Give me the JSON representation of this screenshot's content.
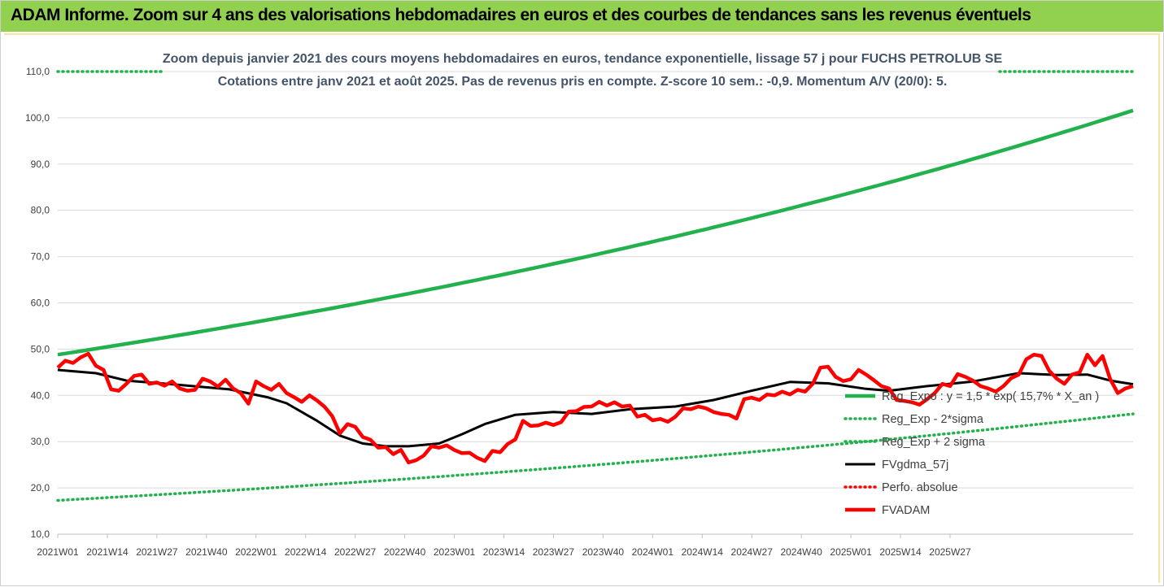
{
  "header": {
    "title": "ADAM Informe. Zoom sur 4 ans des valorisations hebdomadaires en euros et des courbes de tendances sans les revenus éventuels"
  },
  "chart_data": {
    "type": "line",
    "title": "Zoom depuis janvier 2021 des cours moyens hebdomadaires en euros, tendance exponentielle, lissage 57 j pour FUCHS PETROLUB SE",
    "subtitle": "Cotations entre janv 2021 et août 2025. Pas de revenus pris en compte. Z-score 10 sem.: -0,9. Momentum A/V (20/0): 5.",
    "ylim": [
      10,
      110
    ],
    "y_ticks": [
      "10,0",
      "20,0",
      "30,0",
      "40,0",
      "50,0",
      "60,0",
      "70,0",
      "80,0",
      "90,0",
      "100,0",
      "110,0"
    ],
    "x_ticks": [
      "2021W01",
      "2021W14",
      "2021W27",
      "2021W40",
      "2022W01",
      "2022W14",
      "2022W27",
      "2022W40",
      "2023W01",
      "2023W14",
      "2023W27",
      "2023W40",
      "2024W01",
      "2024W14",
      "2024W27",
      "2024W40",
      "2025W01",
      "2025W14",
      "2025W27"
    ],
    "grid": "horizontal",
    "legend_position": "bottom-right",
    "series": [
      {
        "name": "Reg_Expo : y = 1,5 * exp( 15,7% *  X_an )",
        "color": "#22b14c",
        "style": "solid",
        "start": 48.8,
        "end": 101.6
      },
      {
        "name": "Reg_Exp - 2*sigma",
        "color": "#22b14c",
        "style": "dotted",
        "start": 17.3,
        "end": 36.0
      },
      {
        "name": "Reg_Exp + 2 sigma",
        "color": "#22b14c",
        "style": "dotted",
        "start": 110,
        "end": 110
      },
      {
        "name": "FVgdma_57j",
        "color": "#000000",
        "style": "solid",
        "values": [
          [
            0,
            45.5
          ],
          [
            10,
            44.8
          ],
          [
            18,
            43.2
          ],
          [
            30,
            42.4
          ],
          [
            45,
            41.3
          ],
          [
            55,
            39.6
          ],
          [
            60,
            38.3
          ],
          [
            68,
            34.5
          ],
          [
            74,
            31.3
          ],
          [
            80,
            29.6
          ],
          [
            86,
            29.0
          ],
          [
            92,
            29.0
          ],
          [
            100,
            29.6
          ],
          [
            106,
            31.6
          ],
          [
            112,
            33.8
          ],
          [
            120,
            35.8
          ],
          [
            130,
            36.4
          ],
          [
            140,
            36.0
          ],
          [
            150,
            37.0
          ],
          [
            162,
            37.6
          ],
          [
            172,
            39.0
          ],
          [
            182,
            41.0
          ],
          [
            192,
            42.9
          ],
          [
            202,
            42.6
          ],
          [
            212,
            41.4
          ],
          [
            218,
            41.0
          ],
          [
            228,
            42.0
          ],
          [
            240,
            43.0
          ],
          [
            252,
            44.8
          ],
          [
            262,
            44.4
          ],
          [
            270,
            44.5
          ],
          [
            276,
            43.2
          ],
          [
            282,
            42.4
          ]
        ]
      },
      {
        "name": "Perfo. absolue",
        "color": "#ff0000",
        "style": "dotted",
        "values": []
      },
      {
        "name": "FVADAM",
        "color": "#ff0000",
        "style": "solid",
        "values": [
          [
            0,
            46.0
          ],
          [
            2,
            47.5
          ],
          [
            4,
            47.0
          ],
          [
            6,
            48.2
          ],
          [
            8,
            49.0
          ],
          [
            10,
            46.4
          ],
          [
            12,
            45.5
          ],
          [
            14,
            41.3
          ],
          [
            16,
            41.0
          ],
          [
            18,
            42.5
          ],
          [
            20,
            44.2
          ],
          [
            22,
            44.5
          ],
          [
            24,
            42.5
          ],
          [
            26,
            42.8
          ],
          [
            28,
            42.1
          ],
          [
            30,
            43.0
          ],
          [
            32,
            41.5
          ],
          [
            34,
            41.0
          ],
          [
            36,
            41.2
          ],
          [
            38,
            43.6
          ],
          [
            40,
            43.0
          ],
          [
            42,
            41.9
          ],
          [
            44,
            43.4
          ],
          [
            46,
            41.5
          ],
          [
            48,
            40.5
          ],
          [
            50,
            38.2
          ],
          [
            52,
            43.0
          ],
          [
            54,
            42.0
          ],
          [
            56,
            41.2
          ],
          [
            58,
            42.5
          ],
          [
            60,
            40.5
          ],
          [
            62,
            39.6
          ],
          [
            64,
            38.6
          ],
          [
            66,
            40.0
          ],
          [
            68,
            38.9
          ],
          [
            70,
            37.5
          ],
          [
            72,
            35.5
          ],
          [
            74,
            31.8
          ],
          [
            76,
            33.8
          ],
          [
            78,
            33.2
          ],
          [
            80,
            31.0
          ],
          [
            82,
            30.4
          ],
          [
            84,
            28.7
          ],
          [
            86,
            28.8
          ],
          [
            88,
            27.3
          ],
          [
            90,
            28.2
          ],
          [
            92,
            25.5
          ],
          [
            94,
            26.0
          ],
          [
            96,
            27.0
          ],
          [
            98,
            29.0
          ],
          [
            100,
            28.7
          ],
          [
            102,
            29.2
          ],
          [
            104,
            28.2
          ],
          [
            106,
            27.5
          ],
          [
            108,
            27.6
          ],
          [
            110,
            26.5
          ],
          [
            112,
            25.8
          ],
          [
            114,
            28.0
          ],
          [
            116,
            27.7
          ],
          [
            118,
            29.5
          ],
          [
            120,
            30.5
          ],
          [
            122,
            34.5
          ],
          [
            124,
            33.4
          ],
          [
            126,
            33.5
          ],
          [
            128,
            34.1
          ],
          [
            130,
            33.6
          ],
          [
            132,
            34.2
          ],
          [
            134,
            36.5
          ],
          [
            136,
            36.6
          ],
          [
            138,
            37.5
          ],
          [
            140,
            37.6
          ],
          [
            142,
            38.6
          ],
          [
            144,
            37.8
          ],
          [
            146,
            38.5
          ],
          [
            148,
            37.6
          ],
          [
            150,
            37.8
          ],
          [
            152,
            35.4
          ],
          [
            154,
            35.8
          ],
          [
            156,
            34.6
          ],
          [
            158,
            34.9
          ],
          [
            160,
            34.3
          ],
          [
            162,
            35.4
          ],
          [
            164,
            37.2
          ],
          [
            166,
            37.0
          ],
          [
            168,
            37.6
          ],
          [
            170,
            37.2
          ],
          [
            172,
            36.4
          ],
          [
            174,
            36.0
          ],
          [
            176,
            35.8
          ],
          [
            178,
            35.0
          ],
          [
            180,
            39.2
          ],
          [
            182,
            39.5
          ],
          [
            184,
            39.0
          ],
          [
            186,
            40.2
          ],
          [
            188,
            40.0
          ],
          [
            190,
            40.8
          ],
          [
            192,
            40.2
          ],
          [
            194,
            41.2
          ],
          [
            196,
            40.8
          ],
          [
            198,
            42.5
          ],
          [
            200,
            46.0
          ],
          [
            202,
            46.2
          ],
          [
            204,
            44.0
          ],
          [
            206,
            43.1
          ],
          [
            208,
            43.5
          ],
          [
            210,
            45.5
          ],
          [
            212,
            44.5
          ],
          [
            214,
            43.3
          ],
          [
            216,
            42.0
          ],
          [
            218,
            41.5
          ],
          [
            220,
            39.0
          ],
          [
            222,
            38.8
          ],
          [
            224,
            38.5
          ],
          [
            226,
            38.0
          ],
          [
            228,
            39.2
          ],
          [
            230,
            40.5
          ],
          [
            232,
            42.5
          ],
          [
            234,
            42.0
          ],
          [
            236,
            44.6
          ],
          [
            238,
            44.0
          ],
          [
            240,
            43.2
          ],
          [
            242,
            42.0
          ],
          [
            244,
            41.5
          ],
          [
            246,
            40.8
          ],
          [
            248,
            42.0
          ],
          [
            250,
            43.7
          ],
          [
            252,
            44.5
          ],
          [
            254,
            47.8
          ],
          [
            256,
            48.8
          ],
          [
            258,
            48.5
          ],
          [
            260,
            45.3
          ],
          [
            262,
            43.6
          ],
          [
            264,
            42.5
          ],
          [
            266,
            44.5
          ],
          [
            268,
            45.0
          ],
          [
            270,
            48.8
          ],
          [
            272,
            46.5
          ],
          [
            274,
            48.5
          ],
          [
            276,
            43.5
          ],
          [
            278,
            40.5
          ],
          [
            280,
            41.5
          ],
          [
            282,
            42.0
          ]
        ]
      }
    ]
  }
}
